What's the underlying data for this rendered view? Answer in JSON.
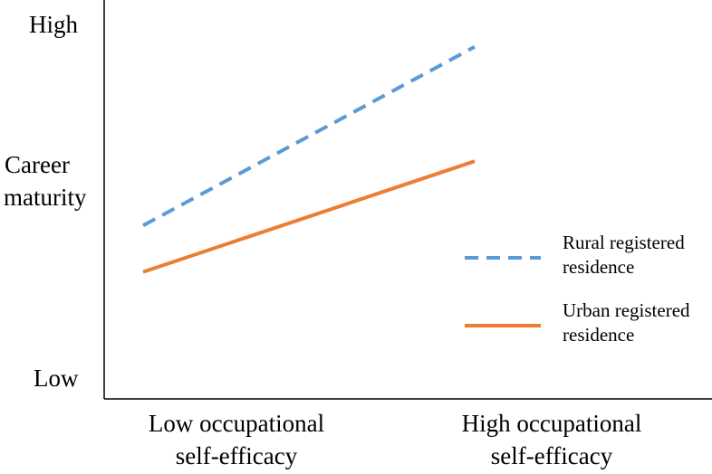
{
  "chart_data": {
    "type": "line",
    "title": "",
    "xlabel": "",
    "ylabel": "Career maturity",
    "ylabel_lines": [
      "Career",
      "maturity"
    ],
    "y_tick_labels": {
      "high": "High",
      "low": "Low"
    },
    "categories": [
      "Low occupational self-efficacy",
      "High occupational self-efficacy"
    ],
    "category_lines": [
      [
        "Low occupational",
        "self-efficacy"
      ],
      [
        "High occupational",
        "self-efficacy"
      ]
    ],
    "ylim": [
      0,
      10
    ],
    "grid": false,
    "legend_position": "right",
    "series": [
      {
        "name": "Rural registered residence",
        "name_lines": [
          "Rural registered",
          "residence"
        ],
        "values": [
          4.6,
          9.6
        ],
        "style": "dashed",
        "color": "#5B9BD5"
      },
      {
        "name": "Urban registered residence",
        "name_lines": [
          "Urban registered",
          "residence"
        ],
        "values": [
          3.3,
          6.4
        ],
        "style": "solid",
        "color": "#ED7D31"
      }
    ]
  }
}
